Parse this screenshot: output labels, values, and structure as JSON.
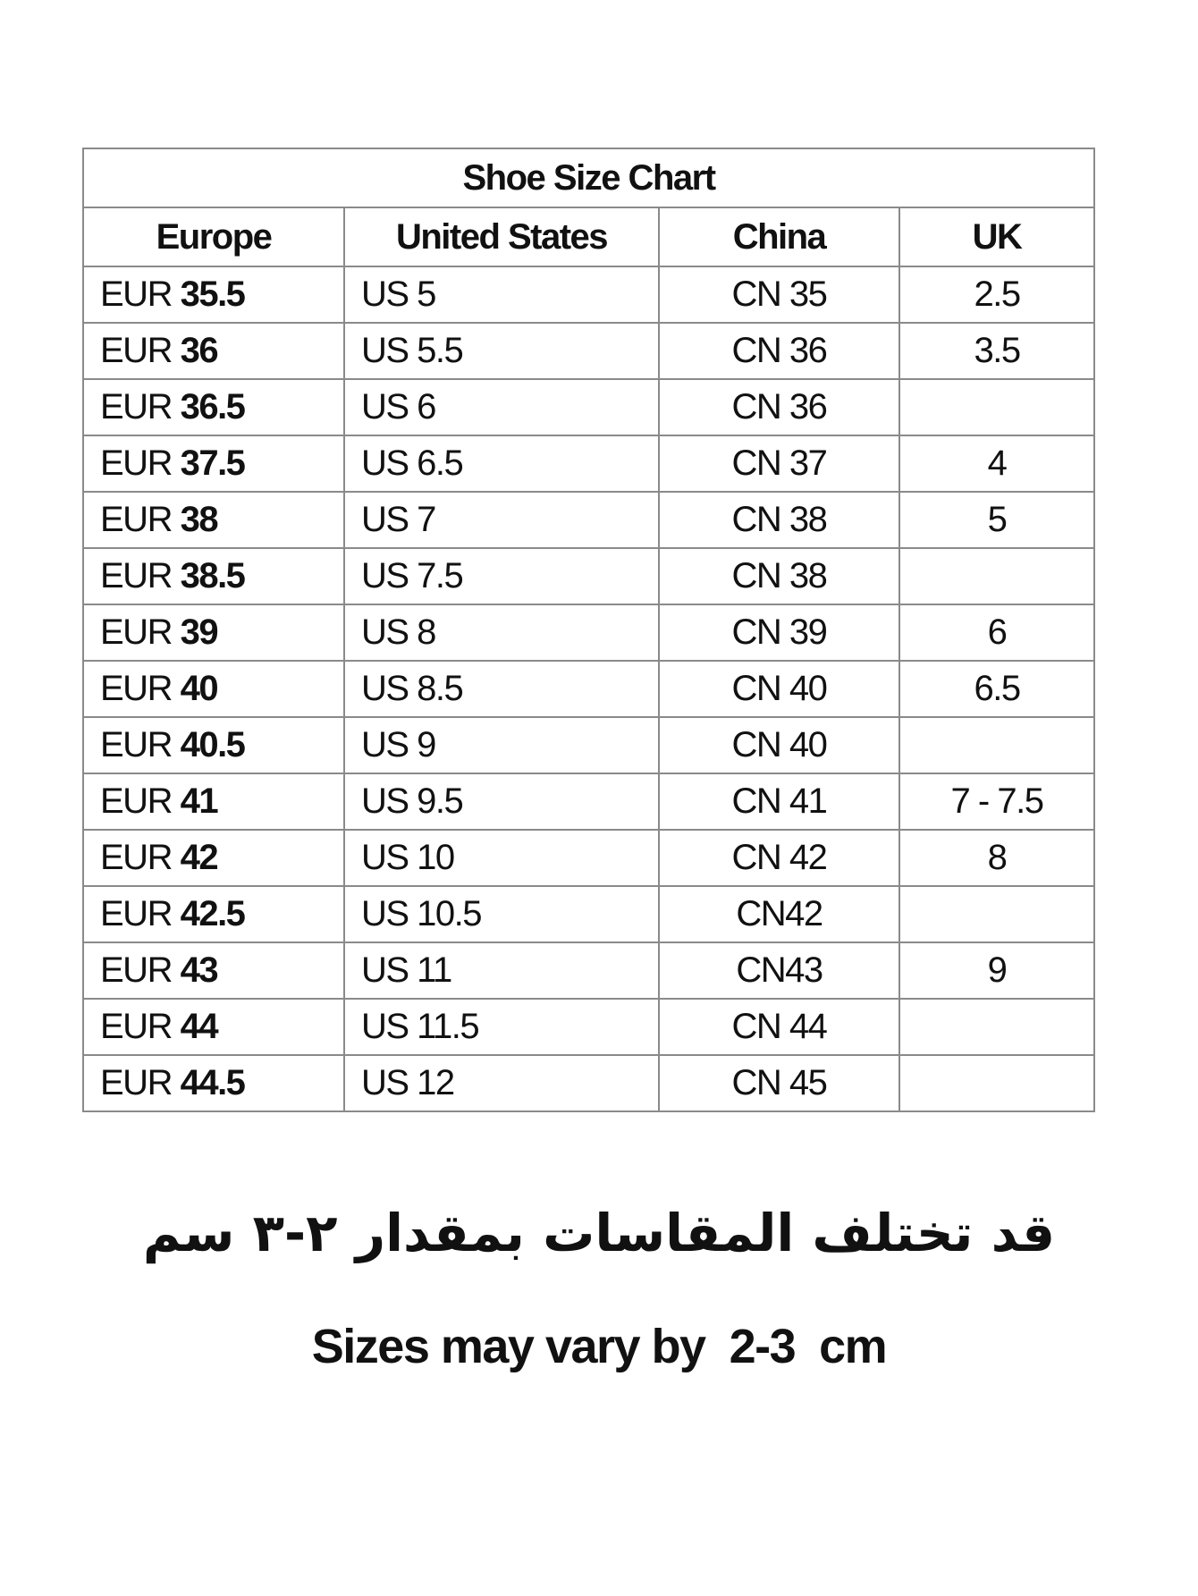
{
  "title": "Shoe Size Chart",
  "columns": [
    "Europe",
    "United States",
    "China",
    "UK"
  ],
  "rows": [
    {
      "eu_prefix": "EUR",
      "eu": "35.5",
      "us": "US 5",
      "cn": "CN 35",
      "uk": "2.5"
    },
    {
      "eu_prefix": "EUR",
      "eu": "36",
      "us": "US 5.5",
      "cn": "CN 36",
      "uk": "3.5"
    },
    {
      "eu_prefix": "EUR",
      "eu": "36.5",
      "us": "US 6",
      "cn": "CN 36",
      "uk": ""
    },
    {
      "eu_prefix": "EUR",
      "eu": "37.5",
      "us": "US 6.5",
      "cn": "CN 37",
      "uk": "4"
    },
    {
      "eu_prefix": "EUR",
      "eu": "38",
      "us": "US 7",
      "cn": "CN 38",
      "uk": "5"
    },
    {
      "eu_prefix": "EUR",
      "eu": "38.5",
      "us": "US 7.5",
      "cn": "CN 38",
      "uk": ""
    },
    {
      "eu_prefix": "EUR",
      "eu": "39",
      "us": "US 8",
      "cn": "CN 39",
      "uk": "6"
    },
    {
      "eu_prefix": "EUR",
      "eu": "40",
      "us": "US 8.5",
      "cn": "CN 40",
      "uk": "6.5"
    },
    {
      "eu_prefix": "EUR",
      "eu": "40.5",
      "us": "US 9",
      "cn": "CN 40",
      "uk": ""
    },
    {
      "eu_prefix": "EUR",
      "eu": "41",
      "us": "US 9.5",
      "cn": "CN 41",
      "uk": "7 - 7.5"
    },
    {
      "eu_prefix": "EUR",
      "eu": "42",
      "us": "US 10",
      "cn": "CN 42",
      "uk": "8"
    },
    {
      "eu_prefix": "EUR",
      "eu": "42.5",
      "us": "US 10.5",
      "cn": "CN42",
      "uk": ""
    },
    {
      "eu_prefix": "EUR",
      "eu": "43",
      "us": "US 11",
      "cn": "CN43",
      "uk": "9"
    },
    {
      "eu_prefix": "EUR",
      "eu": "44",
      "us": "US 11.5",
      "cn": "CN 44",
      "uk": ""
    },
    {
      "eu_prefix": "EUR",
      "eu": "44.5",
      "us": "US 12",
      "cn": "CN 45",
      "uk": ""
    }
  ],
  "note_ar": "قد تختلف المقاسات بمقدار ٢-٣ سم",
  "note_en": "Sizes may vary by  2-3  cm"
}
